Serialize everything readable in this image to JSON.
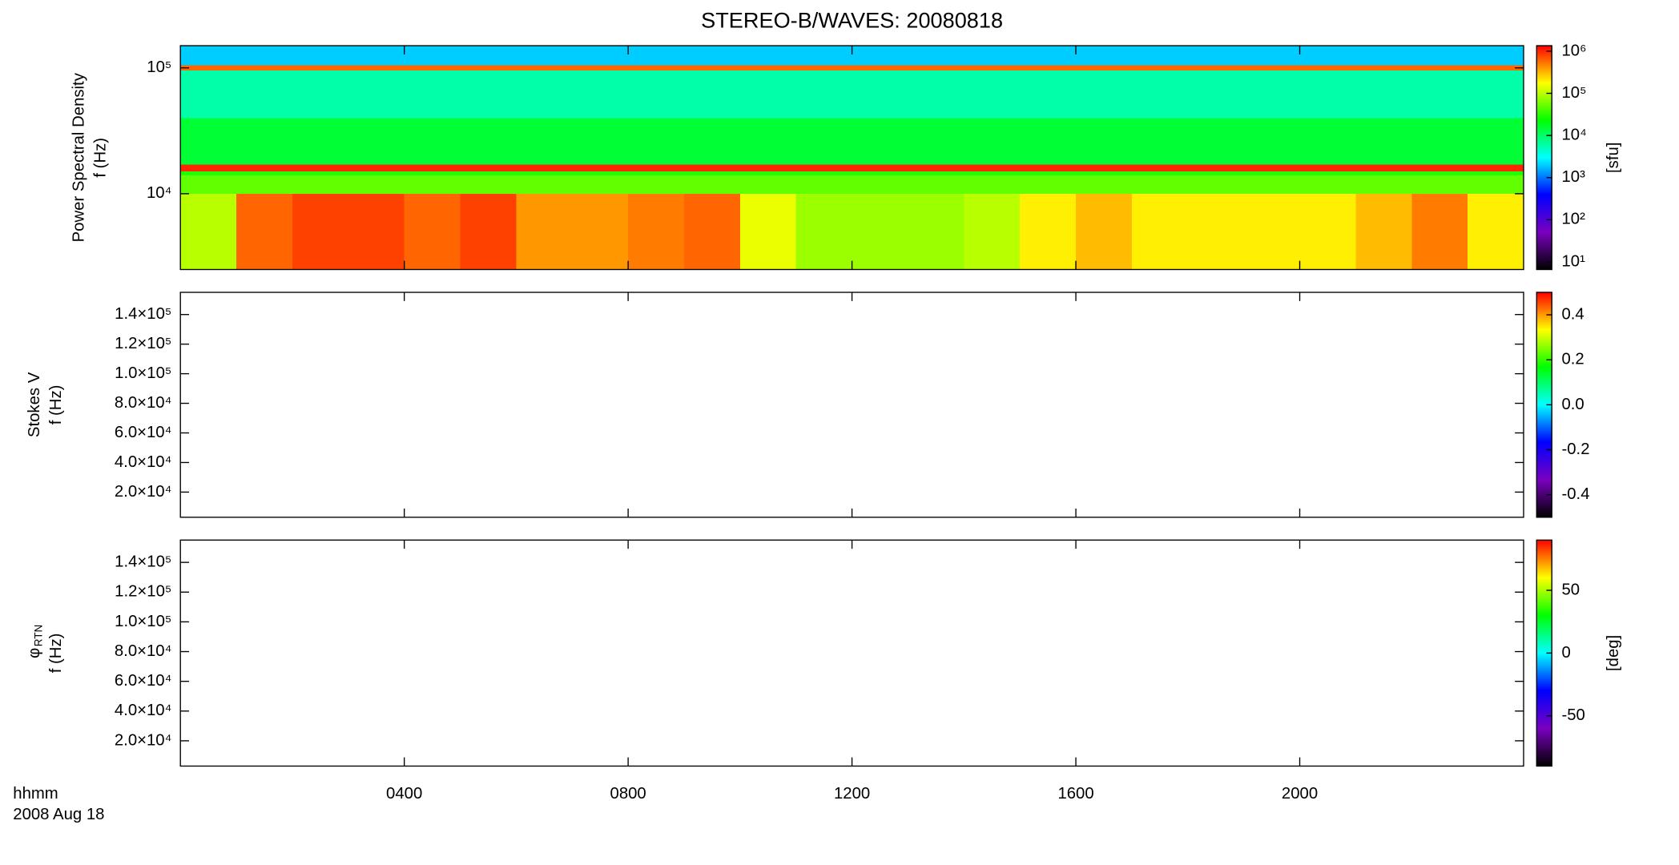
{
  "chart_data": {
    "type": "spectrogram",
    "title": "STEREO-B/WAVES: 20080818",
    "xlim": [
      0,
      24
    ],
    "xticks": [
      {
        "value": 4,
        "label": "0400"
      },
      {
        "value": 8,
        "label": "0800"
      },
      {
        "value": 12,
        "label": "1200"
      },
      {
        "value": 16,
        "label": "1600"
      },
      {
        "value": 20,
        "label": "2000"
      }
    ],
    "xlabel": [
      "hhmm",
      "2008 Aug 18"
    ],
    "colormap": [
      "#000000",
      "#7a00c0",
      "#0000ff",
      "#00ffff",
      "#00ff00",
      "#ffff00",
      "#ff0000"
    ],
    "panels": [
      {
        "ylabel": [
          "Power Spectral Density",
          "f (Hz)"
        ],
        "ylog": true,
        "ylim": [
          2500,
          150000
        ],
        "yticks": [
          {
            "value": 10000,
            "label": "10⁴"
          },
          {
            "value": 100000,
            "label": "10⁵"
          }
        ],
        "clog": true,
        "clim": [
          6.6,
          1350000
        ],
        "cticks": [
          {
            "value": 10,
            "label": "10¹"
          },
          {
            "value": 100,
            "label": "10²"
          },
          {
            "value": 1000,
            "label": "10³"
          },
          {
            "value": 10000,
            "label": "10⁴"
          },
          {
            "value": 100000,
            "label": "10⁵"
          },
          {
            "value": 1000000,
            "label": "10⁶"
          }
        ],
        "clabel": "[sfu]",
        "spectrogram": {
          "t_edges": [
            0,
            1,
            2,
            3,
            4,
            5,
            6,
            7,
            8,
            9,
            10,
            11,
            12,
            13,
            14,
            15,
            16,
            17,
            18,
            19,
            20,
            21,
            22,
            23,
            24
          ],
          "f_edges": [
            2500,
            10000,
            14000,
            15000,
            17000,
            40000,
            95000,
            105000,
            150000
          ],
          "values": [
            [
              100000,
              600000,
              800000,
              800000,
              600000,
              800000,
              400000,
              400000,
              500000,
              600000,
              150000,
              80000,
              80000,
              80000,
              100000,
              200000,
              300000,
              200000,
              200000,
              200000,
              200000,
              300000,
              500000,
              200000
            ],
            [
              50000,
              50000,
              50000,
              50000,
              50000,
              50000,
              50000,
              50000,
              50000,
              50000,
              50000,
              50000,
              50000,
              50000,
              50000,
              50000,
              50000,
              50000,
              50000,
              50000,
              50000,
              50000,
              50000,
              50000
            ],
            [
              30000,
              30000,
              30000,
              30000,
              30000,
              30000,
              30000,
              30000,
              30000,
              30000,
              30000,
              30000,
              30000,
              30000,
              30000,
              30000,
              30000,
              30000,
              30000,
              30000,
              30000,
              30000,
              30000,
              30000
            ],
            [
              1000000,
              1000000,
              1000000,
              1000000,
              1000000,
              1000000,
              1000000,
              1000000,
              1000000,
              1000000,
              1000000,
              1000000,
              1000000,
              1000000,
              1000000,
              1000000,
              1000000,
              1000000,
              1000000,
              1000000,
              1000000,
              1000000,
              1000000,
              1000000
            ],
            [
              15000,
              15000,
              15000,
              15000,
              15000,
              15000,
              15000,
              15000,
              15000,
              15000,
              15000,
              15000,
              15000,
              15000,
              15000,
              15000,
              15000,
              15000,
              15000,
              15000,
              15000,
              15000,
              15000,
              15000
            ],
            [
              6000,
              6000,
              6000,
              6000,
              6000,
              6000,
              6000,
              6000,
              6000,
              6000,
              6000,
              6000,
              6000,
              6000,
              6000,
              6000,
              6000,
              6000,
              6000,
              6000,
              6000,
              6000,
              6000,
              6000
            ],
            [
              600000,
              600000,
              600000,
              600000,
              600000,
              600000,
              600000,
              600000,
              600000,
              600000,
              600000,
              600000,
              600000,
              600000,
              600000,
              600000,
              600000,
              600000,
              600000,
              600000,
              600000,
              600000,
              600000,
              600000
            ],
            [
              2000,
              2000,
              2000,
              2000,
              2000,
              2000,
              2000,
              2000,
              2000,
              2000,
              2000,
              2000,
              2000,
              2000,
              2000,
              2000,
              2000,
              2000,
              2000,
              2000,
              2000,
              2000,
              2000,
              2000
            ]
          ]
        }
      },
      {
        "ylabel": [
          "Stokes V",
          "f (Hz)"
        ],
        "ylim": [
          3000,
          155000
        ],
        "yticks": [
          {
            "value": 20000,
            "label": "2.0×10⁴"
          },
          {
            "value": 40000,
            "label": "4.0×10⁴"
          },
          {
            "value": 60000,
            "label": "6.0×10⁴"
          },
          {
            "value": 80000,
            "label": "8.0×10⁴"
          },
          {
            "value": 100000,
            "label": "1.0×10⁵"
          },
          {
            "value": 120000,
            "label": "1.2×10⁵"
          },
          {
            "value": 140000,
            "label": "1.4×10⁵"
          }
        ],
        "clim": [
          -0.5,
          0.5
        ],
        "cticks": [
          -0.4,
          -0.2,
          {
            "value": 0,
            "label": "0.0"
          },
          0.2,
          0.4
        ]
      },
      {
        "ylabel": [
          "φ",
          "f (Hz)"
        ],
        "ylabel_sub": "RTN",
        "ylim": [
          3000,
          155000
        ],
        "yticks": [
          {
            "value": 20000,
            "label": "2.0×10⁴"
          },
          {
            "value": 40000,
            "label": "4.0×10⁴"
          },
          {
            "value": 60000,
            "label": "6.0×10⁴"
          },
          {
            "value": 80000,
            "label": "8.0×10⁴"
          },
          {
            "value": 100000,
            "label": "1.0×10⁵"
          },
          {
            "value": 120000,
            "label": "1.2×10⁵"
          },
          {
            "value": 140000,
            "label": "1.4×10⁵"
          }
        ],
        "clim": [
          -90,
          90
        ],
        "cticks": [
          -50,
          0,
          50
        ],
        "clabel": "[deg]"
      }
    ]
  }
}
